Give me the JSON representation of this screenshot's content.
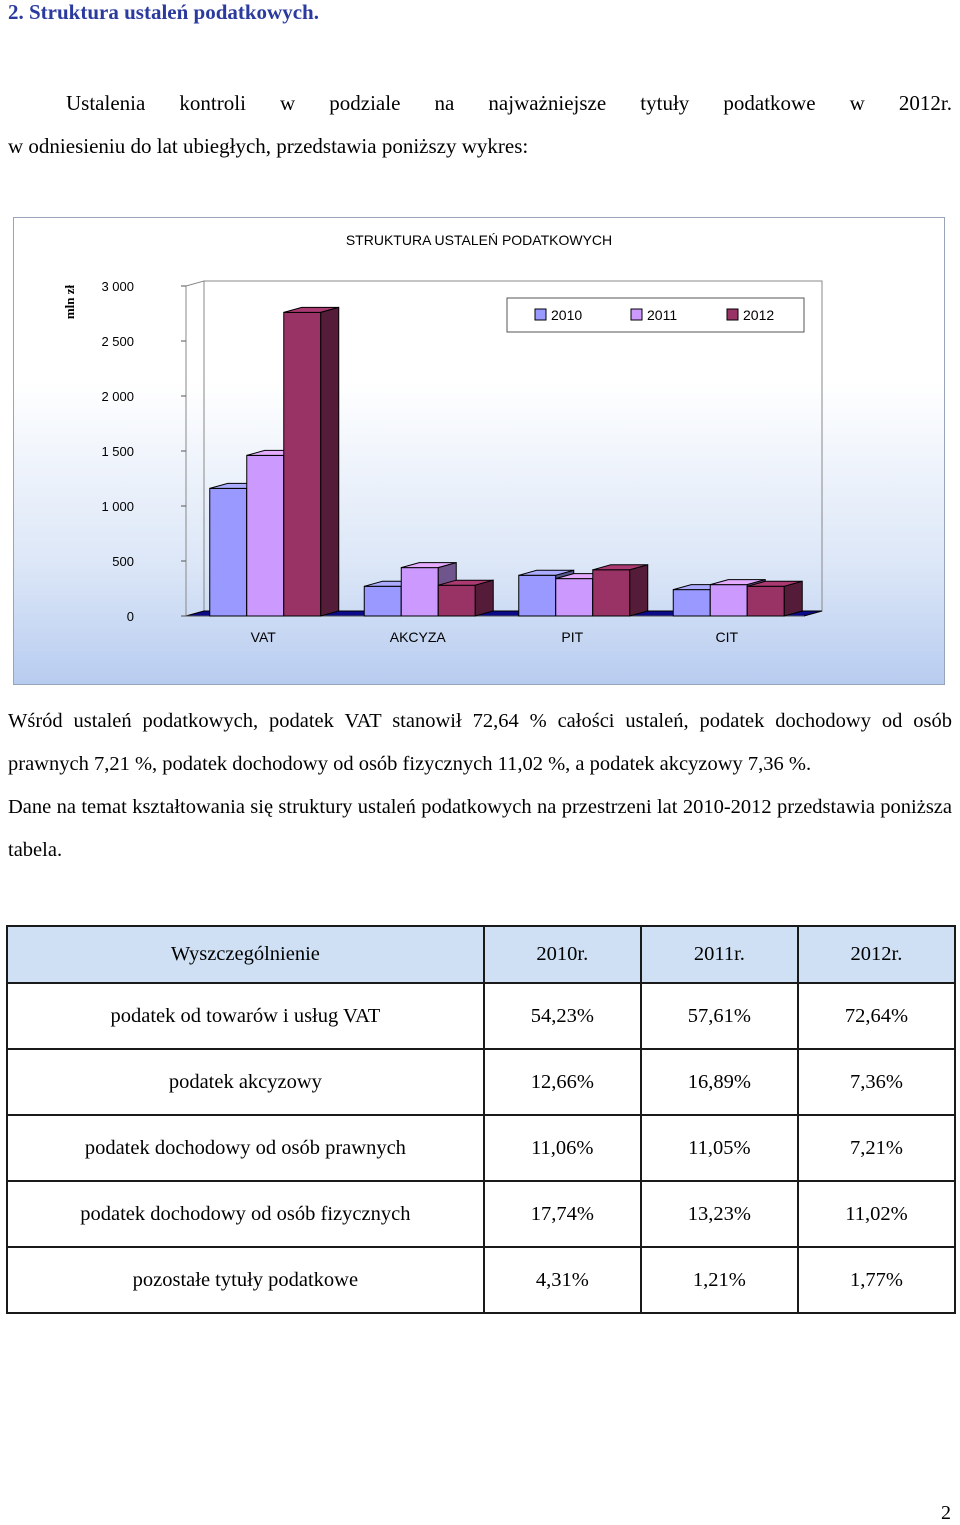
{
  "heading": "2. Struktura ustaleń podatkowych.",
  "intro": {
    "line1": "Ustalenia kontroli w podziale na najważniejsze tytuły podatkowe w 2012r.",
    "line2": "w odniesieniu do lat ubiegłych, przedstawia poniższy wykres:"
  },
  "chart_data": {
    "type": "bar",
    "title": "STRUKTURA USTALEŃ PODATKOWYCH",
    "ylabel": "mln zł",
    "xlabel": "",
    "ylim": [
      0,
      3000
    ],
    "yticks": [
      "0",
      "500",
      "1 000",
      "1 500",
      "2 000",
      "2 500",
      "3 000"
    ],
    "categories": [
      "VAT",
      "AKCYZA",
      "PIT",
      "CIT"
    ],
    "series": [
      {
        "name": "2010",
        "color": "#9999ff",
        "values": [
          1160,
          270,
          370,
          240
        ]
      },
      {
        "name": "2011",
        "color": "#cc99ff",
        "values": [
          1460,
          440,
          340,
          285
        ]
      },
      {
        "name": "2012",
        "color": "#993366",
        "values": [
          2760,
          280,
          420,
          270
        ]
      }
    ],
    "legend": "top-right",
    "grid": false
  },
  "body": {
    "p1": "Wśród ustaleń podatkowych, podatek VAT stanowił 72,64 % całości ustaleń, podatek dochodowy od osób prawnych 7,21 %, podatek dochodowy od osób fizycznych 11,02 %, a podatek akcyzowy 7,36 %.",
    "p2": "Dane na temat kształtowania się struktury ustaleń podatkowych na przestrzeni lat 2010-2012 przedstawia poniższa tabela."
  },
  "table": {
    "headers": [
      "Wyszczególnienie",
      "2010r.",
      "2011r.",
      "2012r."
    ],
    "rows": [
      [
        "podatek od towarów i usług VAT",
        "54,23%",
        "57,61%",
        "72,64%"
      ],
      [
        "podatek akcyzowy",
        "12,66%",
        "16,89%",
        "7,36%"
      ],
      [
        "podatek dochodowy od osób prawnych",
        "11,06%",
        "11,05%",
        "7,21%"
      ],
      [
        "podatek dochodowy od osób fizycznych",
        "17,74%",
        "13,23%",
        "11,02%"
      ],
      [
        "pozostałe tytuły podatkowe",
        "4,31%",
        "1,21%",
        "1,77%"
      ]
    ]
  },
  "page_number": "2"
}
